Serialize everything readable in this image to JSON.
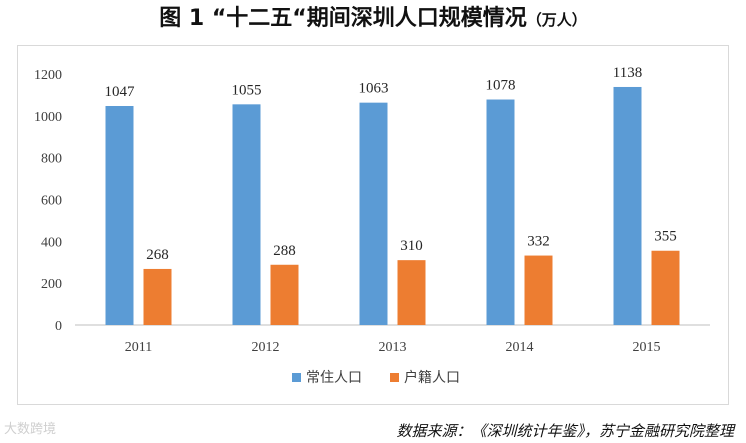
{
  "title": "图 1 “十二五“期间深圳人口规模情况",
  "title_unit": "（万人）",
  "source": "数据来源：《深圳统计年鉴》，苏宁金融研究院整理",
  "watermark": "大数跨境",
  "colors": {
    "series0": "#5b9bd5",
    "series1": "#ed7d31",
    "grid": "#d9d9d9",
    "axis": "#bfbfbf",
    "text": "#404040",
    "label": "#262626"
  },
  "chart_data": {
    "type": "bar",
    "categories": [
      "2011",
      "2012",
      "2013",
      "2014",
      "2015"
    ],
    "series": [
      {
        "name": "常住人口",
        "values": [
          1047,
          1055,
          1063,
          1078,
          1138
        ]
      },
      {
        "name": "户籍人口",
        "values": [
          268,
          288,
          310,
          332,
          355
        ]
      }
    ],
    "ylim": [
      0,
      1200
    ],
    "yticks": [
      0,
      200,
      400,
      600,
      800,
      1000,
      1200
    ],
    "grid": false,
    "legend_position": "bottom"
  }
}
